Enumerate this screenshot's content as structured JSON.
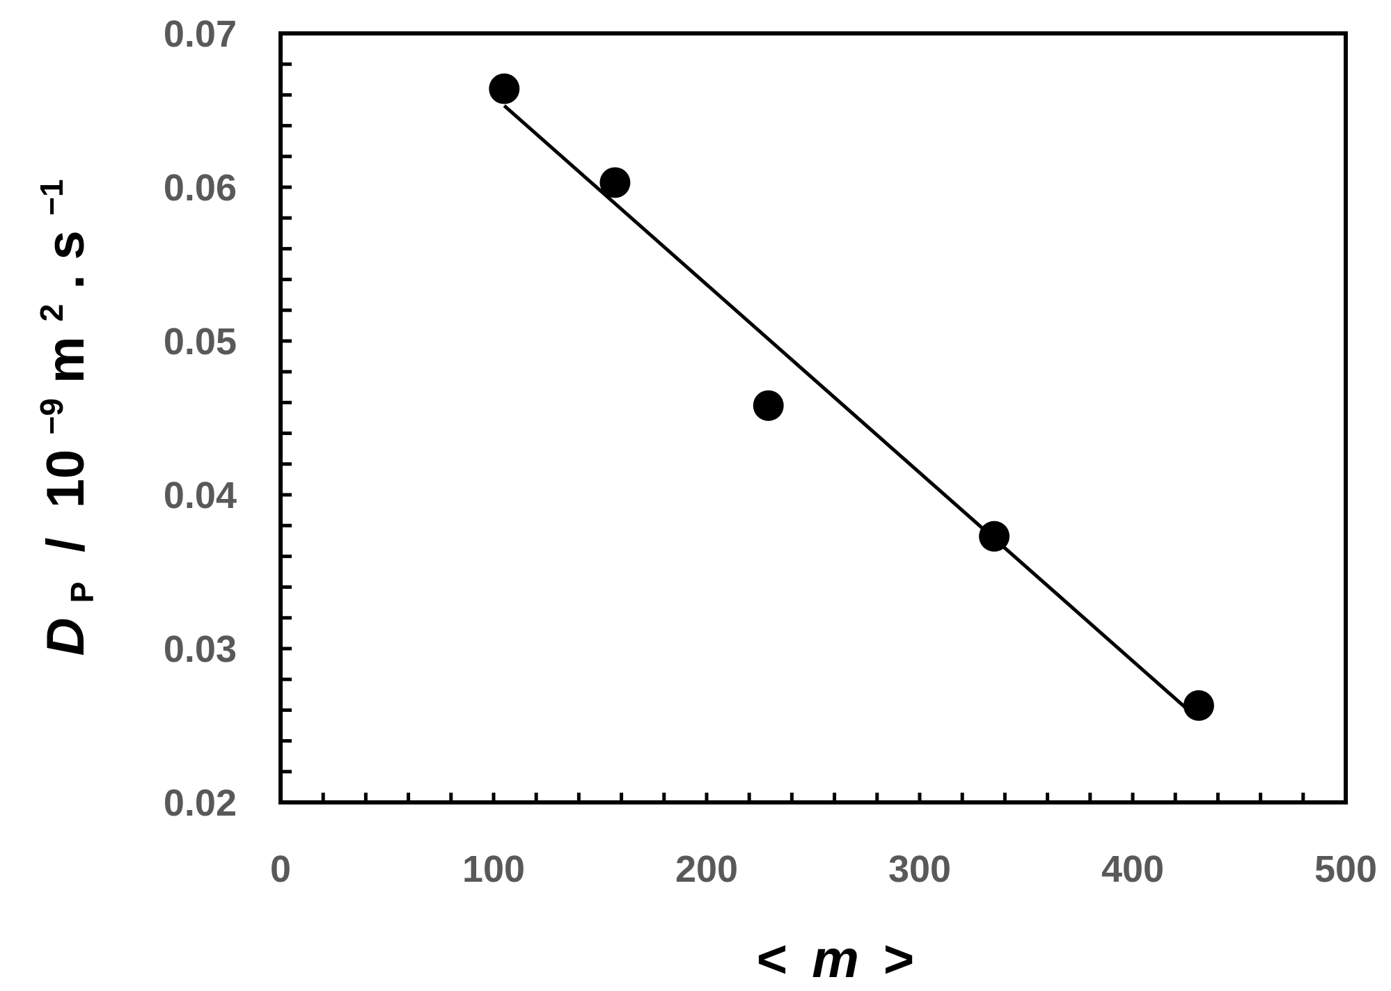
{
  "chart_data": {
    "type": "scatter",
    "title": "",
    "xlabel": {
      "open": "<",
      "var": "m",
      "close": ">"
    },
    "ylabel": {
      "symbol": "D",
      "subscript": "P",
      "sep": " / ",
      "base": "10",
      "exp1": "−9",
      "unit1": "m",
      "exp2": "2",
      "dot": ".",
      "unit2": "s",
      "exp3": "−1"
    },
    "xlim": [
      0,
      500
    ],
    "ylim": [
      0.02,
      0.07
    ],
    "x_ticks": [
      "0",
      "100",
      "200",
      "300",
      "400",
      "500"
    ],
    "y_ticks": [
      "0.02",
      "0.03",
      "0.04",
      "0.05",
      "0.06",
      "0.07"
    ],
    "x_minor_step": 20,
    "y_minor_step": 0.002,
    "grid": false,
    "legend": "none",
    "series": [
      {
        "x": [
          105,
          157,
          229,
          335,
          431
        ],
        "y": [
          0.0664,
          0.0603,
          0.0458,
          0.0373,
          0.0263
        ],
        "marker": "filled-circle"
      }
    ],
    "fit_line": {
      "x": [
        105,
        431
      ],
      "y": [
        0.0653,
        0.0254
      ]
    },
    "colors": {
      "tick_text": "#595959",
      "axis": "#000000",
      "marker": "#000000",
      "label": "#000000"
    }
  }
}
